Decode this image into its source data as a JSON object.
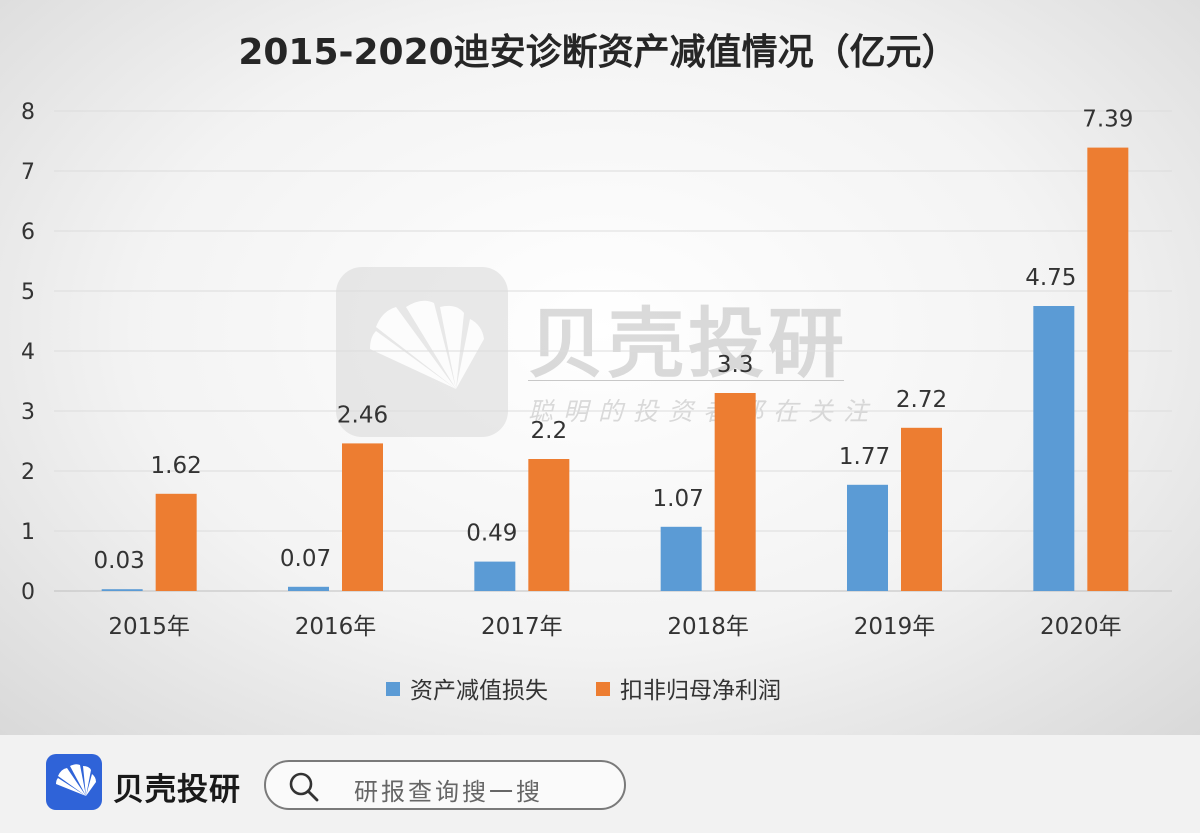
{
  "chart_data": {
    "type": "bar",
    "title": "2015-2020迪安诊断资产减值情况（亿元）",
    "categories": [
      "2015年",
      "2016年",
      "2017年",
      "2018年",
      "2019年",
      "2020年"
    ],
    "series": [
      {
        "name": "资产减值损失",
        "values": [
          0.03,
          0.07,
          0.49,
          1.07,
          1.77,
          4.75
        ],
        "color": "#5b9bd5"
      },
      {
        "name": "扣非归母净利润",
        "values": [
          1.62,
          2.46,
          2.2,
          3.3,
          2.72,
          7.39
        ],
        "color": "#ed7d31"
      }
    ],
    "data_labels": [
      [
        "0.03",
        "0.07",
        "0.49",
        "1.07",
        "1.77",
        "4.75"
      ],
      [
        "1.62",
        "2.46",
        "2.2",
        "3.3",
        "2.72",
        "7.39"
      ]
    ],
    "ylim": [
      0,
      8
    ],
    "yticks": [
      "0",
      "1",
      "2",
      "3",
      "4",
      "5",
      "6",
      "7",
      "8"
    ],
    "grid": true,
    "legend_position": "bottom"
  },
  "watermark": {
    "brand": "贝壳投研",
    "slogan": "聪明的投资者都在关注"
  },
  "footer": {
    "brand_name": "贝壳投研",
    "search_placeholder": "研报查询搜一搜",
    "icons": {
      "logo": "shell-logo-icon",
      "search": "search-icon"
    }
  }
}
